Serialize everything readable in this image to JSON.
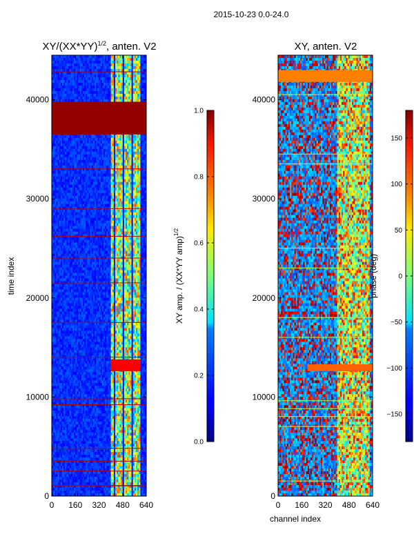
{
  "suptitle": "2015-10-23 0.0-24.0",
  "chart_data": [
    {
      "type": "heatmap",
      "title": "XY/(XX*YY)",
      "title_superscript": "1/2",
      "title_suffix": ", anten. V2",
      "xlabel": "",
      "ylabel": "time index",
      "xlim": [
        0,
        640
      ],
      "ylim": [
        0,
        44500
      ],
      "xticks": [
        0,
        160,
        320,
        480,
        640
      ],
      "yticks": [
        0,
        10000,
        20000,
        30000,
        40000
      ],
      "colorbar": {
        "label": "XY amp. / (XX*YY amp)",
        "label_superscript": "1/2",
        "range": [
          0.0,
          1.0
        ],
        "ticks": [
          "0.0",
          "0.2",
          "0.4",
          "0.6",
          "0.8",
          "1.0"
        ],
        "colormap": "jet"
      }
    },
    {
      "type": "heatmap",
      "title": "XY, anten. V2",
      "xlabel": "channel index",
      "ylabel": "",
      "xlim": [
        0,
        640
      ],
      "ylim": [
        0,
        44500
      ],
      "xticks": [
        0,
        160,
        320,
        480,
        640
      ],
      "yticks": [
        0,
        10000,
        20000,
        30000,
        40000
      ],
      "colorbar": {
        "label": "phase (deg)",
        "range": [
          -180,
          180
        ],
        "ticks": [
          "−150",
          "−100",
          "−50",
          "0",
          "50",
          "100",
          "150"
        ],
        "colormap": "jet"
      }
    }
  ],
  "colors": {
    "jet_low": "#00007f",
    "jet_high": "#7f0000",
    "axis": "#000000"
  }
}
